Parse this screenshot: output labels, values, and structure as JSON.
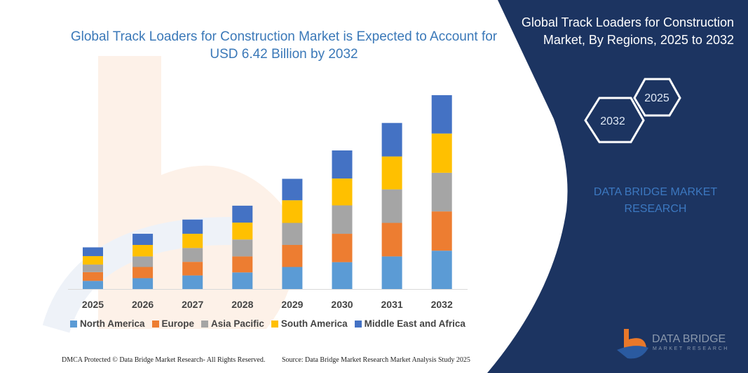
{
  "title": "Global Track Loaders for Construction Market is Expected to Account for USD 6.42 Billion by 2032",
  "panel": {
    "title": "Global Track Loaders for Construction Market, By Regions, 2025 to 2032",
    "hex_start": "2025",
    "hex_end": "2032",
    "brand_text": "DATA BRIDGE MARKET RESEARCH",
    "logo_name": "DATA BRIDGE",
    "logo_sub": "MARKET RESEARCH",
    "bg_color": "#1c3461"
  },
  "footer": {
    "left": "DMCA Protected © Data Bridge Market Research- All Rights Reserved.",
    "right": "Source: Data Bridge Market Research  Market Analysis Study 2025"
  },
  "chart_data": {
    "type": "bar",
    "stacked": true,
    "title": "Global Track Loaders for Construction Market is Expected to Account for USD 6.42 Billion by 2032",
    "xlabel": "",
    "ylabel": "",
    "unit": "USD Billion (estimated)",
    "ylim": [
      0,
      6.42
    ],
    "grid": false,
    "legend_position": "bottom",
    "categories": [
      "2025",
      "2026",
      "2027",
      "2028",
      "2029",
      "2030",
      "2031",
      "2032"
    ],
    "series": [
      {
        "name": "North America",
        "color": "#5b9bd5",
        "values": [
          0.27,
          0.36,
          0.45,
          0.55,
          0.73,
          0.89,
          1.08,
          1.27
        ]
      },
      {
        "name": "Europe",
        "color": "#ed7d31",
        "values": [
          0.29,
          0.37,
          0.45,
          0.53,
          0.73,
          0.94,
          1.11,
          1.3
        ]
      },
      {
        "name": "Asia Pacific",
        "color": "#a5a5a5",
        "values": [
          0.25,
          0.35,
          0.46,
          0.56,
          0.73,
          0.94,
          1.11,
          1.28
        ]
      },
      {
        "name": "South America",
        "color": "#ffc000",
        "values": [
          0.28,
          0.38,
          0.47,
          0.56,
          0.75,
          0.89,
          1.09,
          1.3
        ]
      },
      {
        "name": "Middle East and Africa",
        "color": "#4472c4",
        "values": [
          0.29,
          0.37,
          0.47,
          0.56,
          0.71,
          0.93,
          1.11,
          1.27
        ]
      }
    ]
  }
}
